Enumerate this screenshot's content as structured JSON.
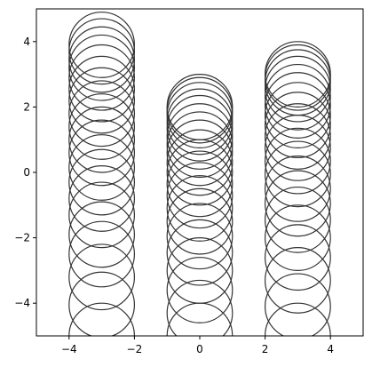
{
  "chart_data": {
    "type": "scatter",
    "marker": "circle-outline",
    "title": "",
    "xlabel": "",
    "ylabel": "",
    "xlim": [
      -5,
      5
    ],
    "ylim": [
      -5,
      5
    ],
    "xticks": [
      -4,
      -2,
      0,
      2,
      4
    ],
    "xtick_labels": [
      "−4",
      "−2",
      "0",
      "2",
      "4"
    ],
    "yticks": [
      -4,
      -2,
      0,
      2,
      4
    ],
    "ytick_labels": [
      "−4",
      "−2",
      "0",
      "2",
      "4"
    ],
    "grid": false,
    "legend": "none",
    "colors": {
      "circle_edge": "#333333",
      "axes": "#000000",
      "background": "#ffffff"
    },
    "circle_radius": 1,
    "series": [
      {
        "x": [
          -3,
          -3,
          -3,
          -3,
          -3,
          -3,
          -3,
          -3,
          -3,
          -3,
          -3,
          -3,
          -3,
          -3,
          -3,
          -3,
          -3,
          -3,
          -3,
          -3
        ],
        "y": [
          -5.0,
          -4.05,
          -3.2,
          -2.5,
          -1.9,
          -1.3,
          -0.8,
          -0.3,
          0.15,
          0.6,
          1.0,
          1.4,
          1.8,
          2.2,
          2.55,
          2.9,
          3.2,
          3.45,
          3.7,
          3.9
        ]
      },
      {
        "x": [
          0,
          0,
          0,
          0,
          0,
          0,
          0,
          0,
          0,
          0,
          0,
          0,
          0,
          0,
          0,
          0,
          0,
          0,
          0,
          0
        ],
        "y": [
          -5.0,
          -4.3,
          -3.6,
          -3.0,
          -2.45,
          -1.95,
          -1.5,
          -1.1,
          -0.7,
          -0.35,
          0.0,
          0.3,
          0.6,
          0.85,
          1.1,
          1.35,
          1.55,
          1.75,
          1.9,
          2.0
        ]
      },
      {
        "x": [
          3,
          3,
          3,
          3,
          3,
          3,
          3,
          3,
          3,
          3,
          3,
          3,
          3,
          3,
          3,
          3,
          3,
          3,
          3,
          3
        ],
        "y": [
          -5.0,
          -4.1,
          -3.3,
          -2.6,
          -2.0,
          -1.45,
          -0.95,
          -0.5,
          -0.05,
          0.35,
          0.75,
          1.1,
          1.45,
          1.75,
          2.05,
          2.3,
          2.55,
          2.75,
          2.9,
          3.0
        ]
      }
    ]
  }
}
